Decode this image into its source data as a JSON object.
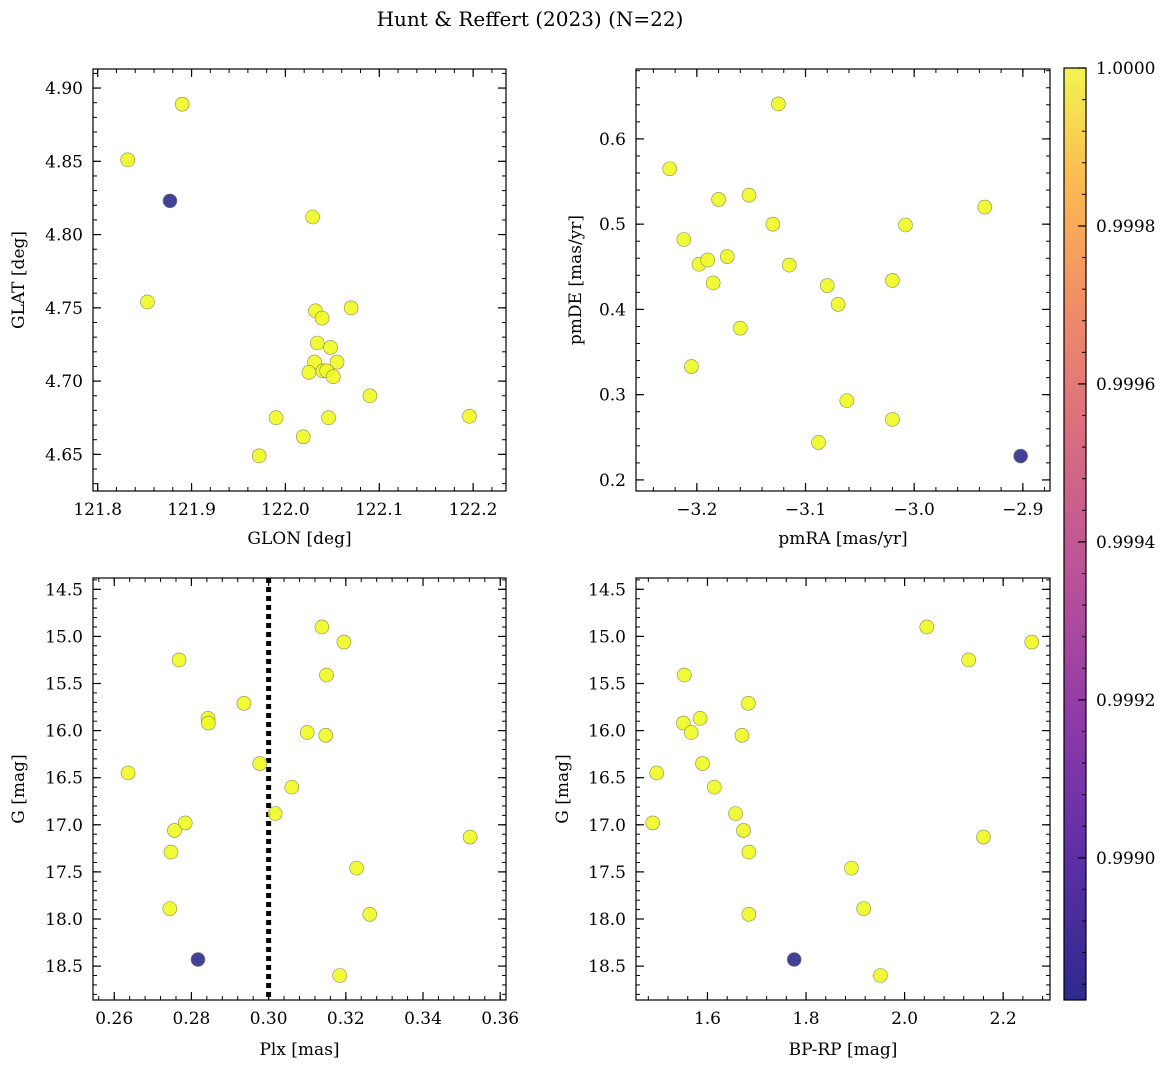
{
  "figure_title": "Hunt & Reffert (2023) (N=22)",
  "colorbar": {
    "min": 0.99882,
    "max": 1.0,
    "ticks": [
      0.999,
      0.9992,
      0.9994,
      0.9996,
      0.9998,
      1.0
    ],
    "tick_labels": [
      "0.9990",
      "0.9992",
      "0.9994",
      "0.9996",
      "0.9998",
      "1.0000"
    ],
    "colormap": "plasma",
    "colors": {
      "low": "#2c2c8c",
      "high": "#f0f921"
    }
  },
  "chart_data": [
    {
      "id": "glon-glat",
      "type": "scatter",
      "xlabel": "GLON [deg]",
      "ylabel": "GLAT [deg]",
      "xlim": [
        121.795,
        122.235
      ],
      "ylim": [
        4.625,
        4.913
      ],
      "xticks": [
        121.8,
        121.9,
        122.0,
        122.1,
        122.2
      ],
      "xtick_labels": [
        "121.8",
        "121.9",
        "122.0",
        "122.1",
        "122.2"
      ],
      "yticks": [
        4.65,
        4.7,
        4.75,
        4.8,
        4.85,
        4.9
      ],
      "ytick_labels": [
        "4.65",
        "4.70",
        "4.75",
        "4.80",
        "4.85",
        "4.90"
      ],
      "invert_y": false,
      "points": [
        {
          "x": 121.832,
          "y": 4.851,
          "p": 1.0
        },
        {
          "x": 121.877,
          "y": 4.823,
          "p": 0.99882
        },
        {
          "x": 121.89,
          "y": 4.889,
          "p": 1.0
        },
        {
          "x": 121.853,
          "y": 4.754,
          "p": 1.0
        },
        {
          "x": 122.029,
          "y": 4.812,
          "p": 1.0
        },
        {
          "x": 122.032,
          "y": 4.748,
          "p": 1.0
        },
        {
          "x": 122.039,
          "y": 4.743,
          "p": 1.0
        },
        {
          "x": 122.07,
          "y": 4.75,
          "p": 1.0
        },
        {
          "x": 122.034,
          "y": 4.726,
          "p": 1.0
        },
        {
          "x": 122.048,
          "y": 4.723,
          "p": 1.0
        },
        {
          "x": 122.031,
          "y": 4.713,
          "p": 1.0
        },
        {
          "x": 122.055,
          "y": 4.713,
          "p": 1.0
        },
        {
          "x": 122.025,
          "y": 4.706,
          "p": 1.0
        },
        {
          "x": 122.04,
          "y": 4.707,
          "p": 1.0
        },
        {
          "x": 122.044,
          "y": 4.707,
          "p": 1.0
        },
        {
          "x": 122.051,
          "y": 4.703,
          "p": 1.0
        },
        {
          "x": 122.09,
          "y": 4.69,
          "p": 1.0
        },
        {
          "x": 121.99,
          "y": 4.675,
          "p": 1.0
        },
        {
          "x": 122.046,
          "y": 4.675,
          "p": 1.0
        },
        {
          "x": 122.196,
          "y": 4.676,
          "p": 1.0
        },
        {
          "x": 122.019,
          "y": 4.662,
          "p": 1.0
        },
        {
          "x": 121.972,
          "y": 4.649,
          "p": 1.0
        }
      ]
    },
    {
      "id": "pmra-pmde",
      "type": "scatter",
      "xlabel": "pmRA [mas/yr]",
      "ylabel": "pmDE [mas/yr]",
      "xlim": [
        -3.256,
        -2.875
      ],
      "ylim": [
        0.187,
        0.682
      ],
      "xticks": [
        -3.2,
        -3.1,
        -3.0,
        -2.9
      ],
      "xtick_labels": [
        "−3.2",
        "−3.1",
        "−3.0",
        "−2.9"
      ],
      "yticks": [
        0.2,
        0.3,
        0.4,
        0.5,
        0.6
      ],
      "ytick_labels": [
        "0.2",
        "0.3",
        "0.4",
        "0.5",
        "0.6"
      ],
      "invert_y": false,
      "points": [
        {
          "x": -3.125,
          "y": 0.641,
          "p": 1.0
        },
        {
          "x": -3.225,
          "y": 0.565,
          "p": 1.0
        },
        {
          "x": -3.152,
          "y": 0.534,
          "p": 1.0
        },
        {
          "x": -3.18,
          "y": 0.529,
          "p": 1.0
        },
        {
          "x": -2.935,
          "y": 0.52,
          "p": 1.0
        },
        {
          "x": -3.13,
          "y": 0.5,
          "p": 1.0
        },
        {
          "x": -3.008,
          "y": 0.499,
          "p": 1.0
        },
        {
          "x": -3.212,
          "y": 0.482,
          "p": 1.0
        },
        {
          "x": -3.172,
          "y": 0.462,
          "p": 1.0
        },
        {
          "x": -3.198,
          "y": 0.453,
          "p": 1.0
        },
        {
          "x": -3.19,
          "y": 0.458,
          "p": 1.0
        },
        {
          "x": -3.115,
          "y": 0.452,
          "p": 1.0
        },
        {
          "x": -3.02,
          "y": 0.434,
          "p": 1.0
        },
        {
          "x": -3.185,
          "y": 0.431,
          "p": 1.0
        },
        {
          "x": -3.08,
          "y": 0.428,
          "p": 1.0
        },
        {
          "x": -3.07,
          "y": 0.406,
          "p": 1.0
        },
        {
          "x": -3.16,
          "y": 0.378,
          "p": 1.0
        },
        {
          "x": -3.205,
          "y": 0.333,
          "p": 1.0
        },
        {
          "x": -3.062,
          "y": 0.293,
          "p": 1.0
        },
        {
          "x": -3.02,
          "y": 0.271,
          "p": 1.0
        },
        {
          "x": -3.088,
          "y": 0.244,
          "p": 1.0
        },
        {
          "x": -2.902,
          "y": 0.228,
          "p": 0.99882
        }
      ]
    },
    {
      "id": "plx-g",
      "type": "scatter",
      "xlabel": "Plx [mas]",
      "ylabel": "G [mag]",
      "xlim": [
        0.2545,
        0.3615
      ],
      "ylim": [
        18.86,
        14.38
      ],
      "xticks": [
        0.26,
        0.28,
        0.3,
        0.32,
        0.34,
        0.36
      ],
      "xtick_labels": [
        "0.26",
        "0.28",
        "0.30",
        "0.32",
        "0.34",
        "0.36"
      ],
      "yticks": [
        14.5,
        15.0,
        15.5,
        16.0,
        16.5,
        17.0,
        17.5,
        18.0,
        18.5
      ],
      "ytick_labels": [
        "14.5",
        "15.0",
        "15.5",
        "16.0",
        "16.5",
        "17.0",
        "17.5",
        "18.0",
        "18.5"
      ],
      "invert_y": true,
      "vline": {
        "x": 0.3,
        "style": "dotted"
      },
      "points": [
        {
          "x": 0.3138,
          "y": 14.9,
          "p": 1.0
        },
        {
          "x": 0.3195,
          "y": 15.06,
          "p": 1.0
        },
        {
          "x": 0.2768,
          "y": 15.25,
          "p": 1.0
        },
        {
          "x": 0.315,
          "y": 15.41,
          "p": 1.0
        },
        {
          "x": 0.2936,
          "y": 15.71,
          "p": 1.0
        },
        {
          "x": 0.2843,
          "y": 15.87,
          "p": 1.0
        },
        {
          "x": 0.2844,
          "y": 15.92,
          "p": 1.0
        },
        {
          "x": 0.31,
          "y": 16.02,
          "p": 1.0
        },
        {
          "x": 0.3148,
          "y": 16.05,
          "p": 1.0
        },
        {
          "x": 0.2977,
          "y": 16.35,
          "p": 1.0
        },
        {
          "x": 0.2636,
          "y": 16.45,
          "p": 1.0
        },
        {
          "x": 0.306,
          "y": 16.6,
          "p": 1.0
        },
        {
          "x": 0.3017,
          "y": 16.88,
          "p": 1.0
        },
        {
          "x": 0.2784,
          "y": 16.98,
          "p": 1.0
        },
        {
          "x": 0.2756,
          "y": 17.06,
          "p": 1.0
        },
        {
          "x": 0.3522,
          "y": 17.13,
          "p": 1.0
        },
        {
          "x": 0.2747,
          "y": 17.29,
          "p": 1.0
        },
        {
          "x": 0.3228,
          "y": 17.46,
          "p": 1.0
        },
        {
          "x": 0.2744,
          "y": 17.89,
          "p": 1.0
        },
        {
          "x": 0.3262,
          "y": 17.95,
          "p": 1.0
        },
        {
          "x": 0.2817,
          "y": 18.43,
          "p": 0.99882
        },
        {
          "x": 0.3184,
          "y": 18.6,
          "p": 1.0
        }
      ]
    },
    {
      "id": "bprp-g",
      "type": "scatter",
      "xlabel": "BP-RP [mag]",
      "ylabel": "G [mag]",
      "xlim": [
        1.455,
        2.295
      ],
      "ylim": [
        18.86,
        14.38
      ],
      "xticks": [
        1.6,
        1.8,
        2.0,
        2.2
      ],
      "xtick_labels": [
        "1.6",
        "1.8",
        "2.0",
        "2.2"
      ],
      "yticks": [
        14.5,
        15.0,
        15.5,
        16.0,
        16.5,
        17.0,
        17.5,
        18.0,
        18.5
      ],
      "ytick_labels": [
        "14.5",
        "15.0",
        "15.5",
        "16.0",
        "16.5",
        "17.0",
        "17.5",
        "18.0",
        "18.5"
      ],
      "invert_y": true,
      "points": [
        {
          "x": 2.045,
          "y": 14.9,
          "p": 1.0
        },
        {
          "x": 2.258,
          "y": 15.06,
          "p": 1.0
        },
        {
          "x": 2.13,
          "y": 15.25,
          "p": 1.0
        },
        {
          "x": 1.553,
          "y": 15.41,
          "p": 1.0
        },
        {
          "x": 1.683,
          "y": 15.71,
          "p": 1.0
        },
        {
          "x": 1.585,
          "y": 15.87,
          "p": 1.0
        },
        {
          "x": 1.551,
          "y": 15.92,
          "p": 1.0
        },
        {
          "x": 1.567,
          "y": 16.02,
          "p": 1.0
        },
        {
          "x": 1.67,
          "y": 16.05,
          "p": 1.0
        },
        {
          "x": 1.59,
          "y": 16.35,
          "p": 1.0
        },
        {
          "x": 1.497,
          "y": 16.45,
          "p": 1.0
        },
        {
          "x": 1.614,
          "y": 16.6,
          "p": 1.0
        },
        {
          "x": 1.657,
          "y": 16.88,
          "p": 1.0
        },
        {
          "x": 1.489,
          "y": 16.98,
          "p": 1.0
        },
        {
          "x": 1.673,
          "y": 17.06,
          "p": 1.0
        },
        {
          "x": 2.16,
          "y": 17.13,
          "p": 1.0
        },
        {
          "x": 1.684,
          "y": 17.29,
          "p": 1.0
        },
        {
          "x": 1.892,
          "y": 17.46,
          "p": 1.0
        },
        {
          "x": 1.917,
          "y": 17.89,
          "p": 1.0
        },
        {
          "x": 1.684,
          "y": 17.95,
          "p": 1.0
        },
        {
          "x": 1.776,
          "y": 18.43,
          "p": 0.99882
        },
        {
          "x": 1.951,
          "y": 18.6,
          "p": 1.0
        }
      ]
    }
  ]
}
